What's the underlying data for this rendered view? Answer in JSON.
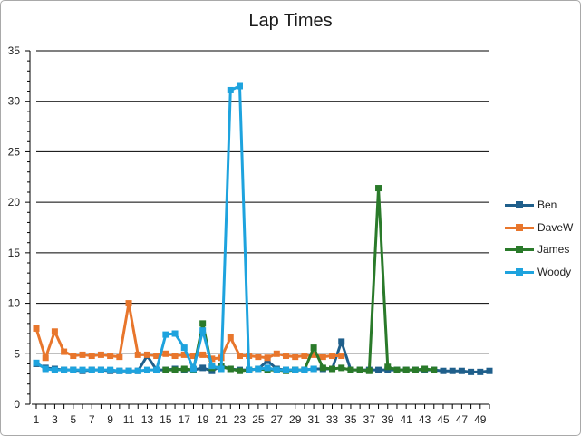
{
  "chart_data": {
    "type": "line",
    "title": "Lap Times",
    "xlabel": "",
    "ylabel": "",
    "ylim": [
      0,
      35
    ],
    "yticks": [
      0,
      5,
      10,
      15,
      20,
      25,
      30,
      35
    ],
    "xlim": [
      1,
      50
    ],
    "xtick_labels": [
      1,
      3,
      5,
      7,
      9,
      11,
      13,
      15,
      17,
      19,
      21,
      23,
      25,
      27,
      29,
      31,
      33,
      35,
      37,
      39,
      41,
      43,
      45,
      47,
      49
    ],
    "grid": "horizontal",
    "legend_position": "right",
    "series": [
      {
        "name": "Ben",
        "color": "#1f5f8b",
        "x": [
          1,
          2,
          3,
          4,
          5,
          6,
          7,
          8,
          9,
          10,
          11,
          12,
          13,
          14,
          15,
          16,
          17,
          18,
          19,
          20,
          21,
          22,
          23,
          24,
          25,
          26,
          27,
          28,
          29,
          30,
          31,
          32,
          33,
          34,
          35,
          36,
          37,
          38,
          39,
          40,
          41,
          42,
          43,
          44,
          45,
          46,
          47,
          48,
          49,
          50
        ],
        "values": [
          4.0,
          3.6,
          3.5,
          3.4,
          3.4,
          3.3,
          3.4,
          3.4,
          3.3,
          3.3,
          3.3,
          3.3,
          4.8,
          3.4,
          3.4,
          3.5,
          3.4,
          3.4,
          3.6,
          3.3,
          3.8,
          3.5,
          3.4,
          3.4,
          3.5,
          4.3,
          3.5,
          3.4,
          3.4,
          3.4,
          3.5,
          3.5,
          3.5,
          6.2,
          3.4,
          3.4,
          3.4,
          3.4,
          3.4,
          3.4,
          3.4,
          3.4,
          3.4,
          3.4,
          3.3,
          3.3,
          3.3,
          3.2,
          3.2,
          3.3
        ]
      },
      {
        "name": "DaveW",
        "color": "#e8762c",
        "x": [
          1,
          2,
          3,
          4,
          5,
          6,
          7,
          8,
          9,
          10,
          11,
          12,
          13,
          14,
          15,
          16,
          17,
          18,
          19,
          20,
          21,
          22,
          23,
          24,
          25,
          26,
          27,
          28,
          29,
          30,
          31,
          32,
          33,
          34
        ],
        "values": [
          7.5,
          4.6,
          7.2,
          5.2,
          4.8,
          4.9,
          4.8,
          4.9,
          4.8,
          4.7,
          10.0,
          4.9,
          4.9,
          4.8,
          5.0,
          4.8,
          4.9,
          4.8,
          4.9,
          4.5,
          4.6,
          6.6,
          4.8,
          4.8,
          4.7,
          4.6,
          5.0,
          4.8,
          4.7,
          4.8,
          4.9,
          4.7,
          4.8,
          4.8
        ]
      },
      {
        "name": "James",
        "color": "#2a7a2a",
        "x": [
          15,
          16,
          17,
          18,
          19,
          20,
          21,
          22,
          23,
          24,
          25,
          26,
          27,
          28,
          29,
          30,
          31,
          32,
          33,
          34,
          35,
          36,
          37,
          38,
          39,
          40,
          41,
          42,
          43,
          44
        ],
        "values": [
          3.4,
          3.4,
          3.5,
          3.4,
          8.0,
          3.6,
          3.7,
          3.5,
          3.3,
          3.4,
          3.5,
          3.4,
          3.4,
          3.3,
          3.4,
          3.4,
          5.6,
          3.6,
          3.5,
          3.6,
          3.4,
          3.4,
          3.3,
          21.4,
          3.7,
          3.4,
          3.4,
          3.4,
          3.5,
          3.4
        ]
      },
      {
        "name": "Woody",
        "color": "#1ea3de",
        "x": [
          1,
          2,
          3,
          4,
          5,
          6,
          7,
          8,
          9,
          10,
          11,
          12,
          13,
          14,
          15,
          16,
          17,
          18,
          19,
          20,
          21,
          22,
          23,
          24,
          25,
          26,
          27,
          28,
          29,
          30,
          31
        ],
        "values": [
          4.1,
          3.5,
          3.4,
          3.4,
          3.4,
          3.4,
          3.4,
          3.4,
          3.4,
          3.3,
          3.3,
          3.3,
          3.4,
          3.4,
          6.9,
          7.0,
          5.6,
          3.5,
          7.3,
          3.8,
          3.5,
          31.1,
          31.5,
          3.4,
          3.5,
          3.6,
          3.4,
          3.4,
          3.4,
          3.4,
          3.5
        ]
      }
    ]
  }
}
